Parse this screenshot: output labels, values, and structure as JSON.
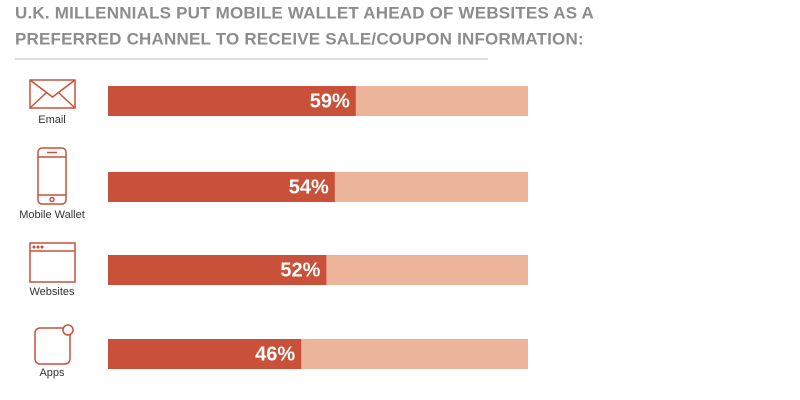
{
  "chart_data": {
    "type": "bar",
    "title": [
      "U.K. MILLENNIALS PUT MOBILE WALLET AHEAD OF WEBSITES AS A",
      "PREFERRED CHANNEL TO RECEIVE SALE/COUPON INFORMATION:"
    ],
    "categories": [
      "Email",
      "Mobile Wallet",
      "Websites",
      "Apps"
    ],
    "values": [
      59,
      54,
      52,
      46
    ],
    "value_labels": [
      "59%",
      "54%",
      "52%",
      "46%"
    ],
    "xlim": [
      0,
      100
    ],
    "color": "#c9513a",
    "track_color": "#ebb49b"
  }
}
